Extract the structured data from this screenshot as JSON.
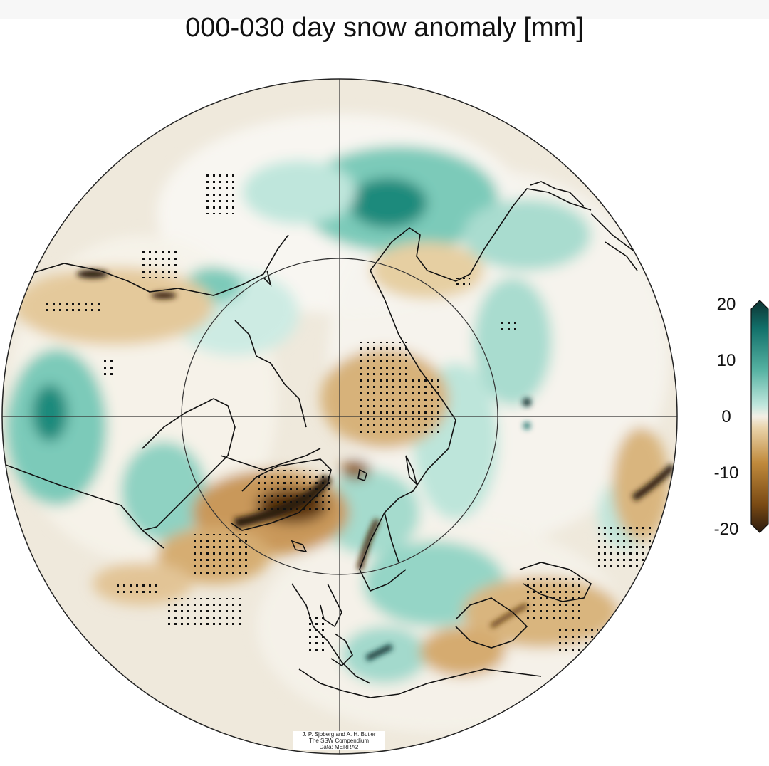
{
  "title": "000-030 day snow anomaly [mm]",
  "colorbar": {
    "ticks": [
      "20",
      "10",
      "0",
      "-10",
      "-20"
    ],
    "range": [
      -20,
      20
    ],
    "colors": [
      "#2b1a0e",
      "#7a4a14",
      "#c08a3c",
      "#e9d3a9",
      "#f3efe6",
      "#bfe6dc",
      "#56b2a2",
      "#12706a",
      "#0d3231"
    ]
  },
  "map": {
    "projection": "north-polar-stereographic",
    "land_color": "#efe9dc",
    "stippling": "significance"
  },
  "credit": {
    "line1": "J. P. Sjoberg and A. H. Butler",
    "line2": "The SSW Compendium",
    "line3": "Data: MERRA2"
  }
}
